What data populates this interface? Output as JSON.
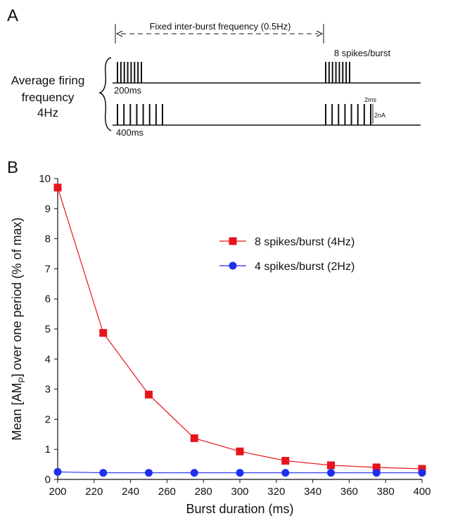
{
  "panel_a": {
    "label": "A",
    "arrow_text": "Fixed inter-burst frequency (0.5Hz)",
    "spikes_text": "8 spikes/burst",
    "rate_text": [
      "Average firing",
      "frequency",
      "4Hz"
    ],
    "short_burst": "200ms",
    "long_burst": "400ms",
    "scale_time": "2ms",
    "scale_current": "2nA"
  },
  "chart_data": {
    "type": "line",
    "panel_label": "B",
    "xlabel": "Burst duration (ms)",
    "ylabel": [
      "Mean [AM",
      "P",
      "] over one period (% of max)"
    ],
    "x": [
      200,
      225,
      250,
      275,
      300,
      325,
      350,
      375,
      400
    ],
    "series": [
      {
        "name": "8 spikes/burst (4Hz)",
        "color": "#e8141b",
        "marker": "square",
        "values": [
          9.7,
          4.87,
          2.82,
          1.37,
          0.93,
          0.62,
          0.47,
          0.4,
          0.35
        ]
      },
      {
        "name": "4 spikes/burst (2Hz)",
        "color": "#1f2ff0",
        "marker": "circle",
        "values": [
          0.25,
          0.22,
          0.22,
          0.22,
          0.22,
          0.22,
          0.22,
          0.22,
          0.22
        ]
      }
    ],
    "xlim": [
      200,
      400
    ],
    "xticks": [
      200,
      220,
      240,
      260,
      280,
      300,
      320,
      340,
      360,
      380,
      400
    ],
    "ylim": [
      0,
      10
    ],
    "yticks": [
      0,
      1,
      2,
      3,
      4,
      5,
      6,
      7,
      8,
      9,
      10
    ],
    "grid": false
  }
}
